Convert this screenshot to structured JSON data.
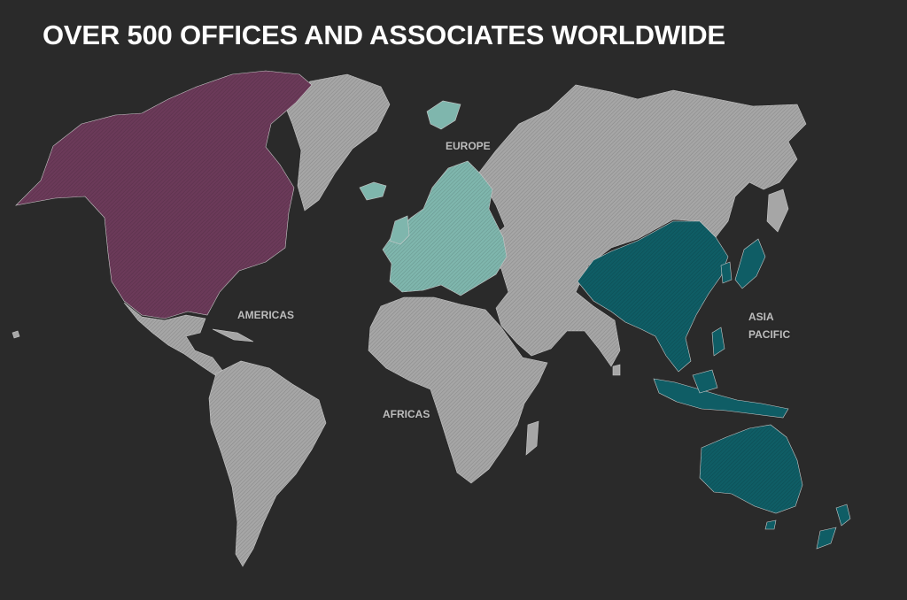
{
  "headline": "OVER 500 OFFICES AND ASSOCIATES WORLDWIDE",
  "regions": {
    "europe": {
      "label": "EUROPE",
      "color": "#7fb6ad"
    },
    "americas": {
      "label": "AMERICAS",
      "color": "#6b3a59"
    },
    "africas": {
      "label": "AFRICAS",
      "color": "#9a9a9a"
    },
    "asia_pacific": {
      "label_line1": "ASIA",
      "label_line2": "PACIFIC",
      "color": "#0f5d65"
    }
  },
  "base_land_color": "#a6a6a6",
  "background_color": "#2a2a2a"
}
